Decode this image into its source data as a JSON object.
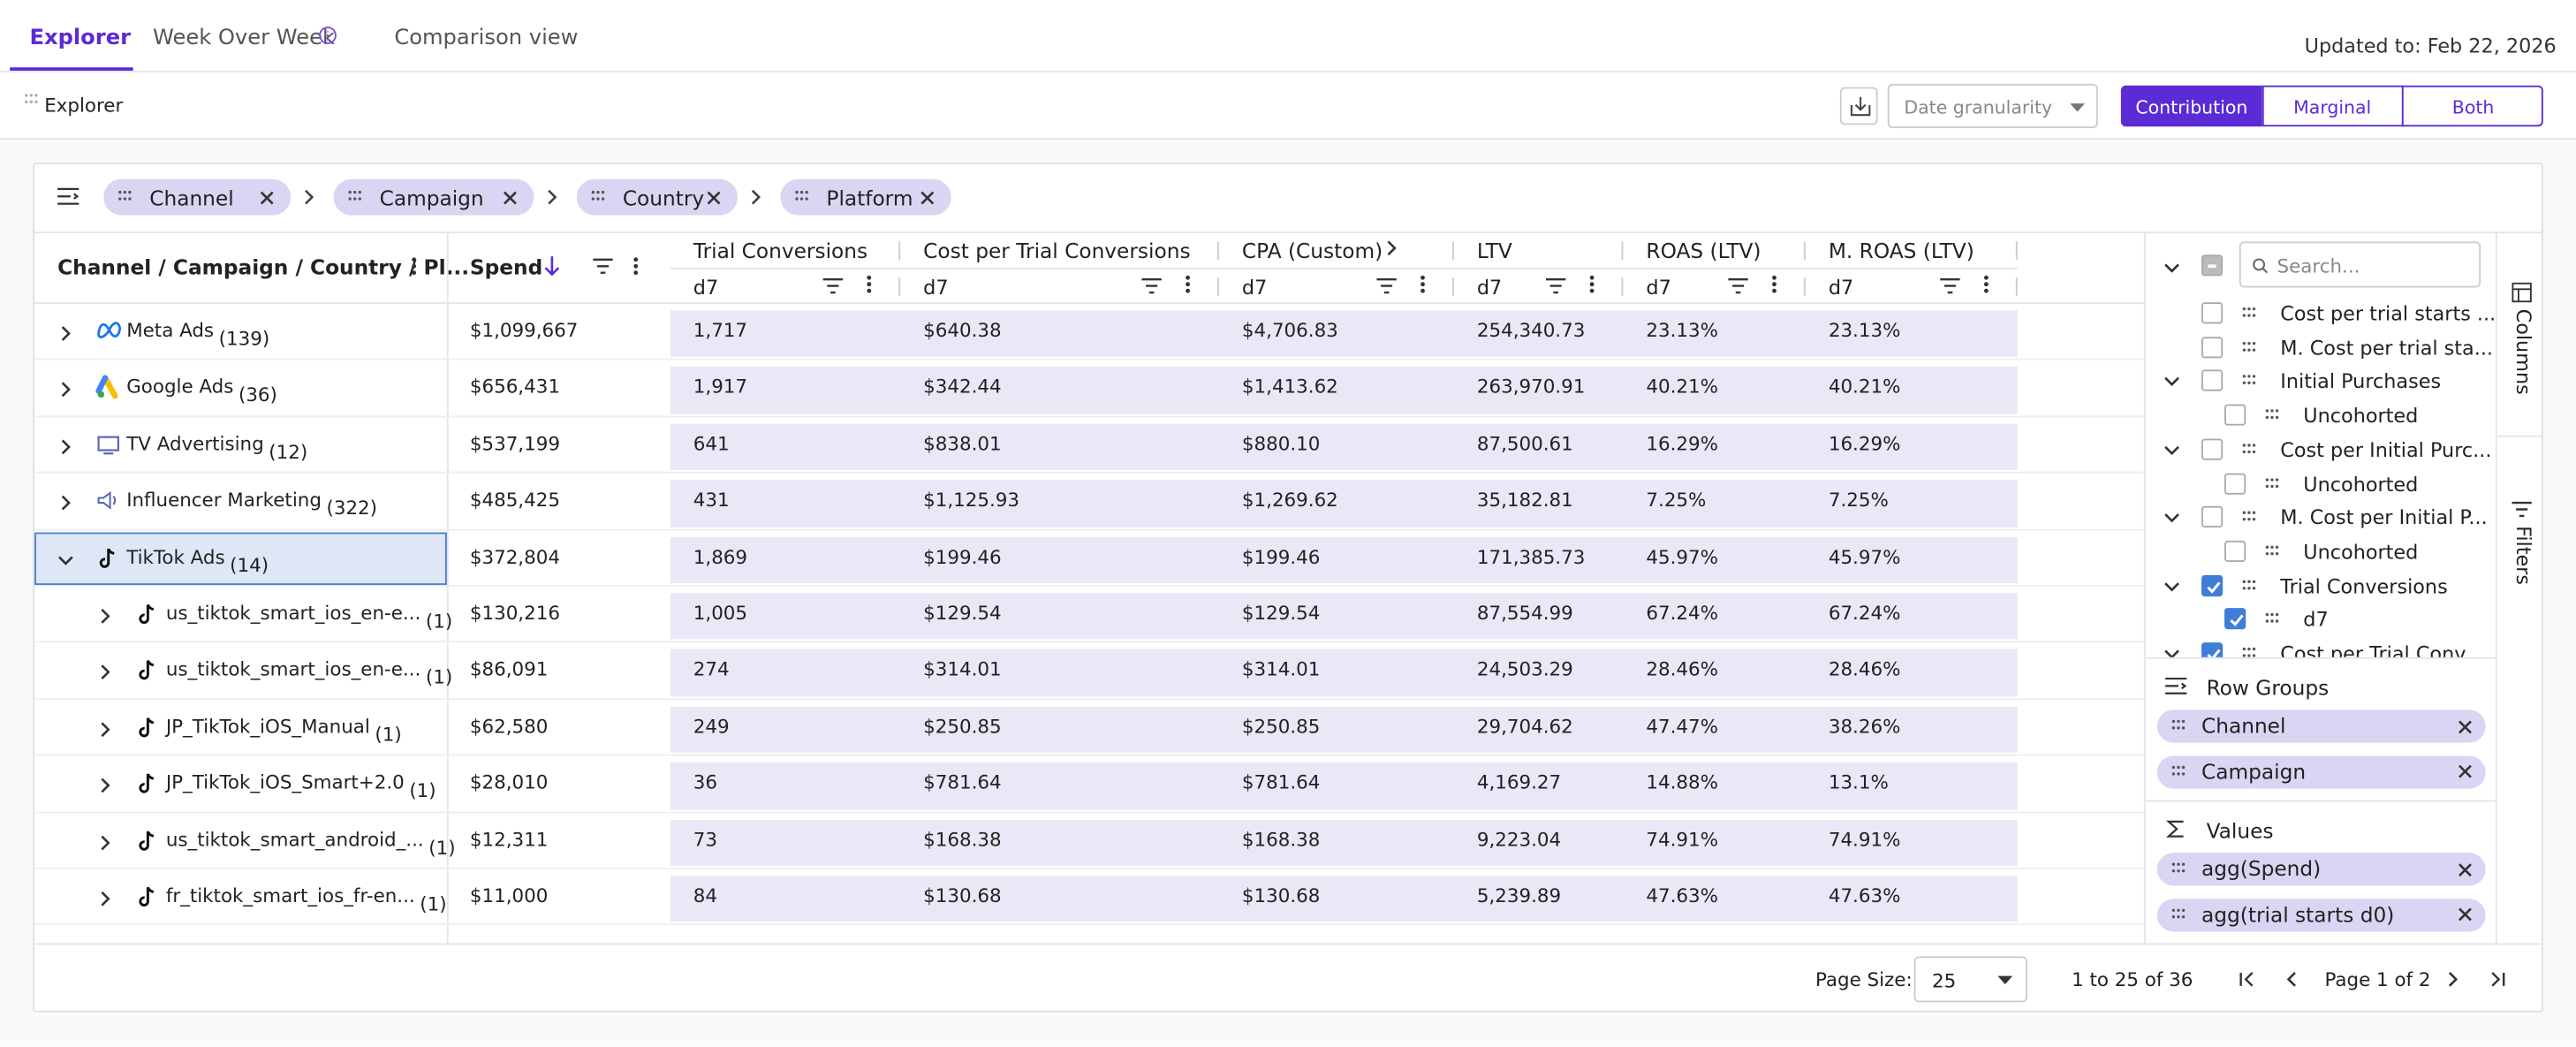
{
  "tabs": [
    "Explorer",
    "Week Over Week",
    "Comparison view"
  ],
  "updated": "Updated to: Feb 22, 2026",
  "toolbar": {
    "title": "Explorer",
    "date_granularity": "Date granularity",
    "modes": [
      "Contribution",
      "Marginal",
      "Both"
    ]
  },
  "group_chips": [
    "Channel",
    "Campaign",
    "Country",
    "Platform"
  ],
  "grid": {
    "group_header": "Channel / Campaign / Country / Pl...",
    "spend_header": "Spend",
    "metric_headers": [
      {
        "name": "Trial Conversions",
        "sub": "d7"
      },
      {
        "name": "Cost per Trial Conversions",
        "sub": "d7"
      },
      {
        "name": "CPA (Custom)",
        "sub": "d7"
      },
      {
        "name": "LTV",
        "sub": "d7"
      },
      {
        "name": "ROAS (LTV)",
        "sub": "d7"
      },
      {
        "name": "M. ROAS (LTV)",
        "sub": "d7"
      }
    ],
    "rows": [
      {
        "label": "Meta Ads",
        "count": "(139)",
        "cells": [
          "$1,099,667",
          "1,717",
          "$640.38",
          "$4,706.83",
          "254,340.73",
          "23.13%",
          "23.13%"
        ]
      },
      {
        "label": "Google Ads",
        "count": "(36)",
        "cells": [
          "$656,431",
          "1,917",
          "$342.44",
          "$1,413.62",
          "263,970.91",
          "40.21%",
          "40.21%"
        ]
      },
      {
        "label": "TV Advertising",
        "count": "(12)",
        "cells": [
          "$537,199",
          "641",
          "$838.01",
          "$880.10",
          "87,500.61",
          "16.29%",
          "16.29%"
        ]
      },
      {
        "label": "Influencer Marketing",
        "count": "(322)",
        "cells": [
          "$485,425",
          "431",
          "$1,125.93",
          "$1,269.62",
          "35,182.81",
          "7.25%",
          "7.25%"
        ]
      },
      {
        "label": "TikTok Ads",
        "count": "(14)",
        "cells": [
          "$372,804",
          "1,869",
          "$199.46",
          "$199.46",
          "171,385.73",
          "45.97%",
          "45.97%"
        ]
      },
      {
        "label": "us_tiktok_smart_ios_en-e...",
        "count": "(1)",
        "cells": [
          "$130,216",
          "1,005",
          "$129.54",
          "$129.54",
          "87,554.99",
          "67.24%",
          "67.24%"
        ]
      },
      {
        "label": "us_tiktok_smart_ios_en-e...",
        "count": "(1)",
        "cells": [
          "$86,091",
          "274",
          "$314.01",
          "$314.01",
          "24,503.29",
          "28.46%",
          "28.46%"
        ]
      },
      {
        "label": "JP_TikTok_iOS_Manual",
        "count": "(1)",
        "cells": [
          "$62,580",
          "249",
          "$250.85",
          "$250.85",
          "29,704.62",
          "47.47%",
          "38.26%"
        ]
      },
      {
        "label": "JP_TikTok_iOS_Smart+2.0",
        "count": "(1)",
        "cells": [
          "$28,010",
          "36",
          "$781.64",
          "$781.64",
          "4,169.27",
          "14.88%",
          "13.1%"
        ]
      },
      {
        "label": "us_tiktok_smart_android_...",
        "count": "(1)",
        "cells": [
          "$12,311",
          "73",
          "$168.38",
          "$168.38",
          "9,223.04",
          "74.91%",
          "74.91%"
        ]
      },
      {
        "label": "fr_tiktok_smart_ios_fr-en...",
        "count": "(1)",
        "cells": [
          "$11,000",
          "84",
          "$130.68",
          "$130.68",
          "5,239.89",
          "47.63%",
          "47.63%"
        ]
      }
    ]
  },
  "side_panel": {
    "search": "Search...",
    "tabs": [
      "Columns",
      "Filters"
    ],
    "tree": [
      "Cost per trial starts ...",
      "M. Cost per trial sta...",
      "Initial Purchases",
      "Uncohorted",
      "Cost per Initial Purc...",
      "Uncohorted",
      "M. Cost per Initial P...",
      "Uncohorted",
      "Trial Conversions",
      "d7",
      "Cost per Trial Conv..."
    ],
    "row_groups_title": "Row Groups",
    "row_groups": [
      "Channel",
      "Campaign"
    ],
    "values_title": "Values",
    "values": [
      "agg(Spend)",
      "agg(trial starts d0)"
    ]
  },
  "footer": {
    "page_size_label": "Page Size:",
    "page_size": "25",
    "range": "1 to 25 of 36",
    "page": "Page 1 of 2"
  }
}
